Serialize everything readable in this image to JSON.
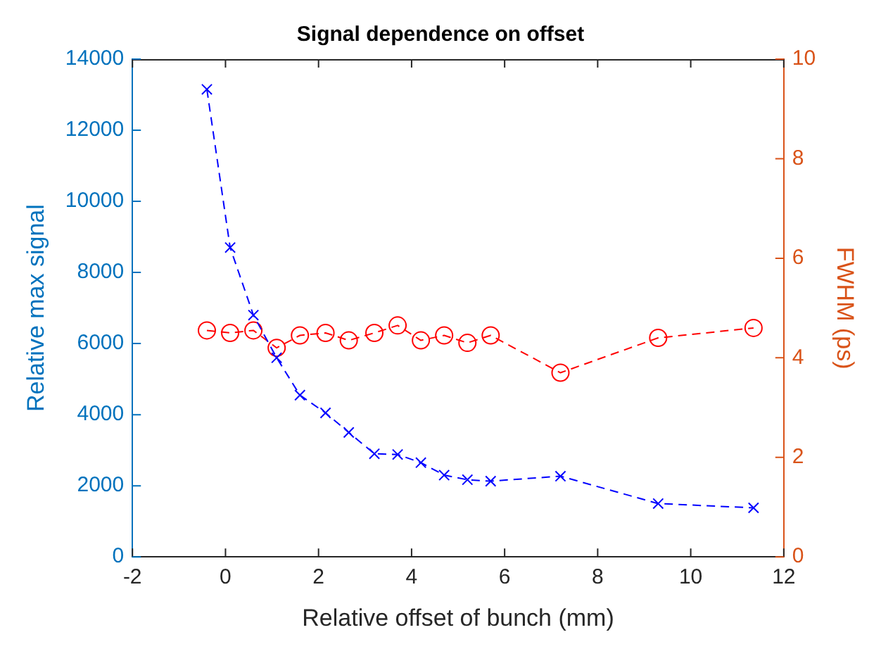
{
  "chart_data": {
    "type": "line",
    "title": "Signal dependence on offset",
    "xlabel": "Relative offset of bunch (mm)",
    "ylabel": "Relative max signal",
    "y2label": "FWHM (ps)",
    "x": [
      -0.4,
      0.1,
      0.6,
      1.1,
      1.6,
      2.15,
      2.65,
      3.2,
      3.7,
      4.2,
      4.7,
      5.2,
      5.7,
      7.2,
      9.3,
      11.35
    ],
    "xlim": [
      -2,
      12
    ],
    "xticks": [
      -2,
      0,
      2,
      4,
      6,
      8,
      10,
      12
    ],
    "ylim": [
      0,
      14000
    ],
    "yticks": [
      0,
      2000,
      4000,
      6000,
      8000,
      10000,
      12000,
      14000
    ],
    "y2lim": [
      0,
      10
    ],
    "y2ticks": [
      0,
      2,
      4,
      6,
      8,
      10
    ],
    "grid": false,
    "legend": false,
    "line_style": "dashed",
    "series": [
      {
        "color": "#0000ff",
        "marker": "cross",
        "values": [
          13150,
          8700,
          6800,
          5600,
          4550,
          4050,
          3500,
          2900,
          2880,
          2650,
          2300,
          2170,
          2130,
          2270,
          1500,
          1380
        ]
      },
      {
        "color": "#ff0000",
        "marker": "circle",
        "axis": "y2",
        "values": [
          4.55,
          4.5,
          4.55,
          4.2,
          4.45,
          4.5,
          4.35,
          4.5,
          4.65,
          4.35,
          4.45,
          4.3,
          4.45,
          3.7,
          4.4,
          4.6
        ]
      }
    ]
  }
}
